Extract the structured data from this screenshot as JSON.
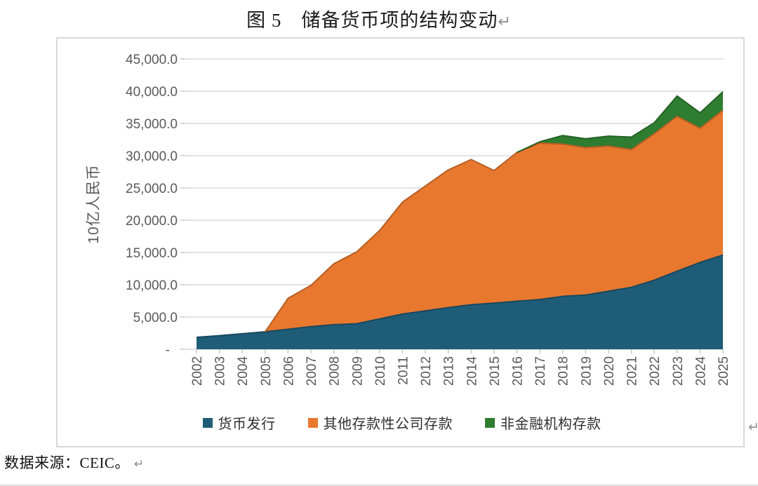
{
  "page": {
    "title": "图 5　储备货币项的结构变动",
    "title_return_mark": "↵",
    "source_note": "数据来源：CEIC。 ",
    "source_return_mark": "↵",
    "frame_return_mark": "↵"
  },
  "colors": {
    "series_blue": "#1F5C78",
    "series_orange": "#E8782E",
    "series_green": "#2E7D31",
    "gridline": "#d9d9d9",
    "axis_tick": "#bfbfbf",
    "tick_label": "#595959",
    "frame_border": "#d8d8d8"
  },
  "chart_data": {
    "type": "area",
    "stacked": true,
    "title": "图 5 储备货币项的结构变动",
    "ylabel": "10亿人民币",
    "xlabel": "",
    "grid": true,
    "legend_position": "bottom",
    "ylim": [
      0,
      45000
    ],
    "ytick_step": 5000,
    "ytick_labels": [
      "45,000.0",
      "40,000.0",
      "35,000.0",
      "30,000.0",
      "25,000.0",
      "20,000.0",
      "15,000.0",
      "10,000.0",
      "5,000.0",
      "-"
    ],
    "categories": [
      "2002",
      "2003",
      "2004",
      "2005",
      "2006",
      "2007",
      "2008",
      "2009",
      "2010",
      "2011",
      "2012",
      "2013",
      "2014",
      "2015",
      "2016",
      "2017",
      "2018",
      "2019",
      "2020",
      "2021",
      "2022",
      "2023",
      "2024",
      "2025"
    ],
    "series": [
      {
        "name": "货币发行",
        "slug": "currency-issuance",
        "color": "#1F5C78",
        "values": [
          1850,
          2100,
          2400,
          2700,
          3100,
          3500,
          3800,
          3950,
          4700,
          5450,
          5950,
          6450,
          6900,
          7150,
          7450,
          7700,
          8200,
          8400,
          9000,
          9600,
          10700,
          12100,
          13450,
          14600
        ]
      },
      {
        "name": "其他存款性公司存款",
        "slug": "other-depository-corp-deposits",
        "color": "#E8782E",
        "values": [
          0,
          0,
          0,
          0,
          4800,
          6400,
          9450,
          11150,
          13700,
          17350,
          19350,
          21350,
          22500,
          20550,
          23050,
          24250,
          23600,
          22850,
          22500,
          21350,
          22700,
          24000,
          20800,
          22450
        ]
      },
      {
        "name": "非金融机构存款",
        "slug": "non-financial-institution-deposits",
        "color": "#2E7D31",
        "values": [
          0,
          0,
          0,
          0,
          0,
          0,
          0,
          0,
          0,
          0,
          0,
          0,
          0,
          0,
          0,
          200,
          1330,
          1370,
          1530,
          1930,
          1700,
          3150,
          2400,
          2850
        ]
      }
    ]
  }
}
